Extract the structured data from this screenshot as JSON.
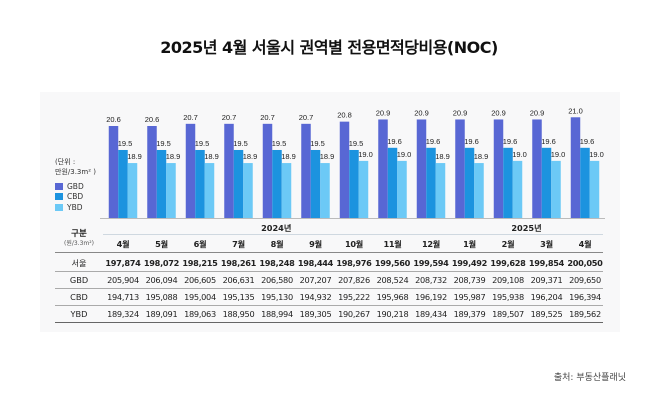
{
  "title": "2025년 4월 서울시 권역별 전용면적당비용(NOC)",
  "unit_label_1": "(단위 :",
  "unit_label_2": "만원/3.3m² )",
  "source": "출처: 부동산플래닛",
  "chart_data": {
    "type": "bar",
    "title": "2025년 4월 서울시 권역별 전용면적당비용(NOC)",
    "ylabel": "(단위 : 만원/3.3m² )",
    "legend": "left",
    "grid": false,
    "categories": [
      "4월",
      "5월",
      "6월",
      "7월",
      "8월",
      "9월",
      "10월",
      "11월",
      "12월",
      "1월",
      "2월",
      "3월",
      "4월"
    ],
    "series": [
      {
        "name": "GBD",
        "color": "#5867d4",
        "values": [
          20.6,
          20.6,
          20.7,
          20.7,
          20.7,
          20.7,
          20.8,
          20.9,
          20.9,
          20.9,
          20.9,
          20.9,
          21.0
        ]
      },
      {
        "name": "CBD",
        "color": "#1c93df",
        "values": [
          19.5,
          19.5,
          19.5,
          19.5,
          19.5,
          19.5,
          19.5,
          19.6,
          19.6,
          19.6,
          19.6,
          19.6,
          19.6
        ]
      },
      {
        "name": "YBD",
        "color": "#6cc9f6",
        "values": [
          18.9,
          18.9,
          18.9,
          18.9,
          18.9,
          18.9,
          19.0,
          19.0,
          18.9,
          18.9,
          19.0,
          19.0,
          19.0
        ]
      }
    ]
  },
  "table": {
    "corner_label": "구분",
    "corner_unit": "(원/3.3m²)",
    "year_2024": "2024년",
    "year_2025": "2025년",
    "months": [
      "4월",
      "5월",
      "6월",
      "7월",
      "8월",
      "9월",
      "10월",
      "11월",
      "12월",
      "1월",
      "2월",
      "3월",
      "4월"
    ],
    "rows": [
      {
        "label": "서울",
        "values": [
          "197,874",
          "198,072",
          "198,215",
          "198,261",
          "198,248",
          "198,444",
          "198,976",
          "199,560",
          "199,594",
          "199,492",
          "199,628",
          "199,854",
          "200,050"
        ]
      },
      {
        "label": "GBD",
        "values": [
          "205,904",
          "206,094",
          "206,605",
          "206,631",
          "206,580",
          "207,207",
          "207,826",
          "208,524",
          "208,732",
          "208,739",
          "209,108",
          "209,371",
          "209,650"
        ]
      },
      {
        "label": "CBD",
        "values": [
          "194,713",
          "195,088",
          "195,004",
          "195,135",
          "195,130",
          "194,932",
          "195,222",
          "195,968",
          "196,192",
          "195,987",
          "195,938",
          "196,204",
          "196,394"
        ]
      },
      {
        "label": "YBD",
        "values": [
          "189,324",
          "189,091",
          "189,063",
          "188,950",
          "188,994",
          "189,305",
          "190,267",
          "190,218",
          "189,434",
          "189,379",
          "189,507",
          "189,525",
          "189,562"
        ]
      }
    ]
  }
}
